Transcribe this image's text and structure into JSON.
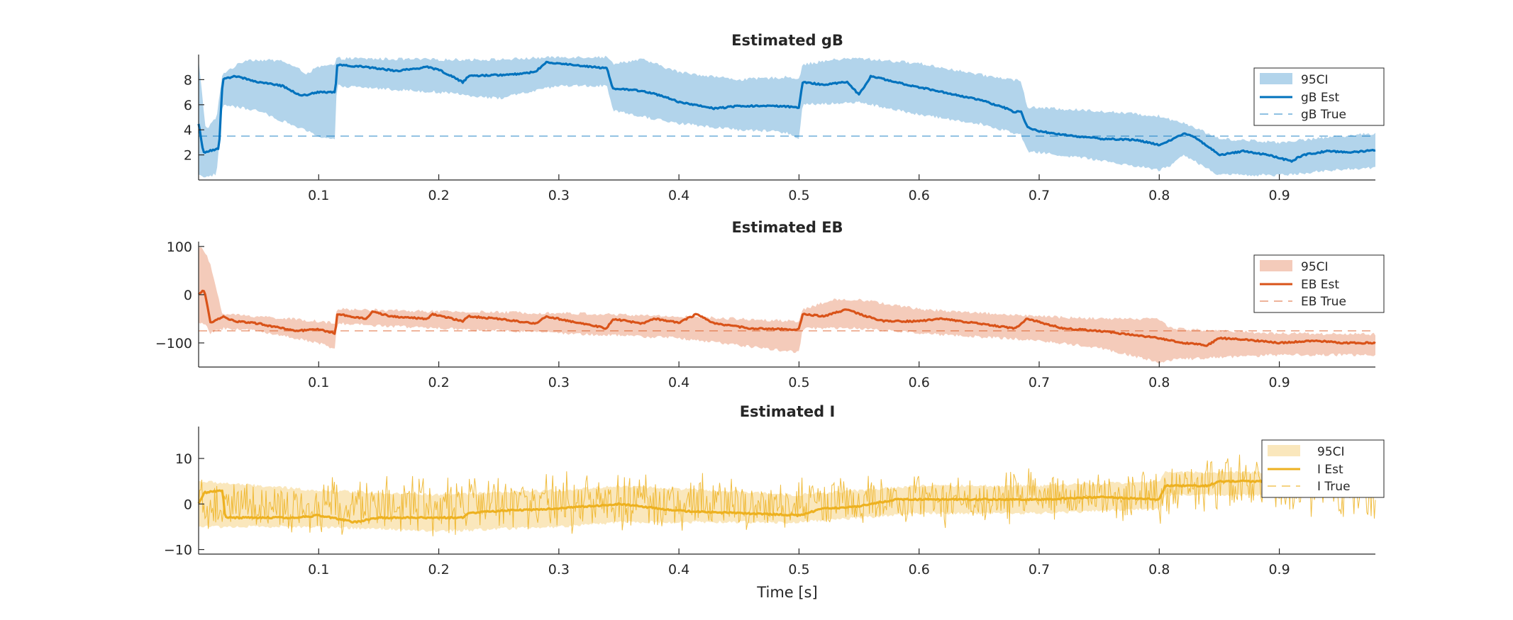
{
  "chart_data": [
    {
      "type": "line",
      "title": "Estimated gB",
      "xlabel": "",
      "ylabel": "",
      "xlim": [
        0,
        0.98
      ],
      "ylim": [
        0,
        10
      ],
      "x_ticks": [
        0.1,
        0.2,
        0.3,
        0.4,
        0.5,
        0.6,
        0.7,
        0.8,
        0.9
      ],
      "x_tick_labels": [
        "0.1",
        "0.2",
        "0.3",
        "0.4",
        "0.5",
        "0.6",
        "0.7",
        "0.8",
        "0.9"
      ],
      "y_ticks": [
        2,
        4,
        6,
        8
      ],
      "y_tick_labels": [
        "2",
        "4",
        "6",
        "8"
      ],
      "legend": {
        "position": "top-right",
        "entries": [
          "95CI",
          "gB Est",
          "gB True"
        ]
      },
      "color": "#0072BD",
      "true_value": 3.5,
      "noise_true": false,
      "true_amp": 0,
      "est": [
        [
          0,
          4.5
        ],
        [
          0.004,
          2.2
        ],
        [
          0.017,
          2.5
        ],
        [
          0.02,
          8.0
        ],
        [
          0.03,
          8.3
        ],
        [
          0.05,
          7.8
        ],
        [
          0.07,
          7.5
        ],
        [
          0.085,
          6.7
        ],
        [
          0.1,
          7.0
        ],
        [
          0.114,
          7.0
        ],
        [
          0.115,
          9.2
        ],
        [
          0.14,
          9.0
        ],
        [
          0.165,
          8.7
        ],
        [
          0.19,
          9.0
        ],
        [
          0.2,
          8.8
        ],
        [
          0.22,
          7.8
        ],
        [
          0.225,
          8.3
        ],
        [
          0.26,
          8.4
        ],
        [
          0.28,
          8.6
        ],
        [
          0.29,
          9.4
        ],
        [
          0.31,
          9.2
        ],
        [
          0.34,
          8.9
        ],
        [
          0.345,
          7.3
        ],
        [
          0.37,
          7.1
        ],
        [
          0.39,
          6.6
        ],
        [
          0.4,
          6.2
        ],
        [
          0.43,
          5.7
        ],
        [
          0.45,
          5.9
        ],
        [
          0.48,
          5.9
        ],
        [
          0.5,
          5.8
        ],
        [
          0.503,
          7.8
        ],
        [
          0.52,
          7.6
        ],
        [
          0.54,
          7.8
        ],
        [
          0.55,
          6.8
        ],
        [
          0.56,
          8.3
        ],
        [
          0.58,
          7.8
        ],
        [
          0.6,
          7.4
        ],
        [
          0.62,
          7.0
        ],
        [
          0.65,
          6.4
        ],
        [
          0.67,
          5.8
        ],
        [
          0.68,
          5.4
        ],
        [
          0.685,
          5.5
        ],
        [
          0.69,
          4.2
        ],
        [
          0.7,
          3.9
        ],
        [
          0.72,
          3.6
        ],
        [
          0.75,
          3.3
        ],
        [
          0.78,
          3.2
        ],
        [
          0.8,
          2.8
        ],
        [
          0.81,
          3.2
        ],
        [
          0.82,
          3.7
        ],
        [
          0.83,
          3.4
        ],
        [
          0.85,
          2.0
        ],
        [
          0.87,
          2.3
        ],
        [
          0.89,
          2.0
        ],
        [
          0.91,
          1.5
        ],
        [
          0.92,
          2.0
        ],
        [
          0.94,
          2.3
        ],
        [
          0.96,
          2.2
        ],
        [
          0.98,
          2.4
        ]
      ],
      "ci_upper": [
        [
          0,
          9.5
        ],
        [
          0.006,
          4.0
        ],
        [
          0.015,
          5.0
        ],
        [
          0.02,
          8.5
        ],
        [
          0.04,
          9.6
        ],
        [
          0.07,
          9.5
        ],
        [
          0.09,
          8.5
        ],
        [
          0.1,
          9.0
        ],
        [
          0.114,
          9.2
        ],
        [
          0.115,
          9.7
        ],
        [
          0.2,
          9.6
        ],
        [
          0.25,
          9.6
        ],
        [
          0.3,
          9.8
        ],
        [
          0.34,
          9.8
        ],
        [
          0.345,
          9.3
        ],
        [
          0.37,
          9.6
        ],
        [
          0.4,
          8.6
        ],
        [
          0.45,
          8.0
        ],
        [
          0.49,
          8.2
        ],
        [
          0.5,
          8.1
        ],
        [
          0.503,
          9.2
        ],
        [
          0.53,
          9.6
        ],
        [
          0.55,
          9.7
        ],
        [
          0.6,
          9.3
        ],
        [
          0.65,
          8.4
        ],
        [
          0.685,
          7.9
        ],
        [
          0.69,
          5.8
        ],
        [
          0.75,
          5.5
        ],
        [
          0.8,
          5.1
        ],
        [
          0.81,
          4.8
        ],
        [
          0.82,
          4.6
        ],
        [
          0.85,
          3.3
        ],
        [
          0.9,
          3.0
        ],
        [
          0.95,
          3.5
        ],
        [
          0.98,
          3.7
        ]
      ],
      "ci_lower": [
        [
          0,
          0.5
        ],
        [
          0.006,
          0.2
        ],
        [
          0.015,
          0.5
        ],
        [
          0.02,
          6.0
        ],
        [
          0.05,
          5.5
        ],
        [
          0.1,
          3.5
        ],
        [
          0.114,
          3.2
        ],
        [
          0.115,
          7.5
        ],
        [
          0.2,
          7.0
        ],
        [
          0.25,
          6.5
        ],
        [
          0.3,
          7.5
        ],
        [
          0.34,
          7.5
        ],
        [
          0.345,
          5.5
        ],
        [
          0.4,
          4.5
        ],
        [
          0.45,
          4.0
        ],
        [
          0.49,
          3.8
        ],
        [
          0.5,
          3.2
        ],
        [
          0.503,
          6.0
        ],
        [
          0.55,
          6.2
        ],
        [
          0.6,
          5.2
        ],
        [
          0.65,
          4.5
        ],
        [
          0.685,
          3.6
        ],
        [
          0.69,
          2.3
        ],
        [
          0.75,
          1.6
        ],
        [
          0.8,
          0.8
        ],
        [
          0.81,
          1.2
        ],
        [
          0.82,
          2.0
        ],
        [
          0.85,
          0.4
        ],
        [
          0.9,
          0.4
        ],
        [
          0.95,
          0.8
        ],
        [
          0.98,
          1.0
        ]
      ]
    },
    {
      "type": "line",
      "title": "Estimated EB",
      "xlabel": "",
      "ylabel": "",
      "xlim": [
        0,
        0.98
      ],
      "ylim": [
        -150,
        110
      ],
      "x_ticks": [
        0.1,
        0.2,
        0.3,
        0.4,
        0.5,
        0.6,
        0.7,
        0.8,
        0.9
      ],
      "x_tick_labels": [
        "0.1",
        "0.2",
        "0.3",
        "0.4",
        "0.5",
        "0.6",
        "0.7",
        "0.8",
        "0.9"
      ],
      "y_ticks": [
        -100,
        0,
        100
      ],
      "y_tick_labels": [
        "−100",
        "0",
        "100"
      ],
      "legend": {
        "position": "top-right",
        "entries": [
          "95CI",
          "EB Est",
          "EB True"
        ]
      },
      "color": "#D95319",
      "true_value": -75,
      "noise_true": false,
      "true_amp": 0,
      "est": [
        [
          0,
          0
        ],
        [
          0.004,
          10
        ],
        [
          0.006,
          -5
        ],
        [
          0.01,
          -60
        ],
        [
          0.02,
          -45
        ],
        [
          0.03,
          -55
        ],
        [
          0.05,
          -60
        ],
        [
          0.08,
          -75
        ],
        [
          0.1,
          -72
        ],
        [
          0.114,
          -80
        ],
        [
          0.115,
          -40
        ],
        [
          0.14,
          -50
        ],
        [
          0.145,
          -35
        ],
        [
          0.16,
          -45
        ],
        [
          0.19,
          -50
        ],
        [
          0.195,
          -40
        ],
        [
          0.22,
          -55
        ],
        [
          0.225,
          -45
        ],
        [
          0.25,
          -50
        ],
        [
          0.28,
          -60
        ],
        [
          0.29,
          -45
        ],
        [
          0.31,
          -55
        ],
        [
          0.34,
          -70
        ],
        [
          0.345,
          -50
        ],
        [
          0.37,
          -60
        ],
        [
          0.38,
          -50
        ],
        [
          0.4,
          -58
        ],
        [
          0.415,
          -40
        ],
        [
          0.43,
          -60
        ],
        [
          0.46,
          -70
        ],
        [
          0.5,
          -72
        ],
        [
          0.503,
          -40
        ],
        [
          0.52,
          -45
        ],
        [
          0.54,
          -30
        ],
        [
          0.55,
          -40
        ],
        [
          0.57,
          -55
        ],
        [
          0.6,
          -55
        ],
        [
          0.62,
          -50
        ],
        [
          0.65,
          -60
        ],
        [
          0.68,
          -70
        ],
        [
          0.69,
          -50
        ],
        [
          0.72,
          -70
        ],
        [
          0.75,
          -75
        ],
        [
          0.8,
          -90
        ],
        [
          0.82,
          -100
        ],
        [
          0.84,
          -105
        ],
        [
          0.85,
          -90
        ],
        [
          0.88,
          -95
        ],
        [
          0.9,
          -100
        ],
        [
          0.93,
          -95
        ],
        [
          0.95,
          -100
        ],
        [
          0.98,
          -100
        ]
      ],
      "ci_upper": [
        [
          0,
          100
        ],
        [
          0.005,
          90
        ],
        [
          0.01,
          60
        ],
        [
          0.02,
          -40
        ],
        [
          0.05,
          -45
        ],
        [
          0.1,
          -55
        ],
        [
          0.114,
          -60
        ],
        [
          0.115,
          -30
        ],
        [
          0.2,
          -35
        ],
        [
          0.3,
          -38
        ],
        [
          0.4,
          -45
        ],
        [
          0.5,
          -55
        ],
        [
          0.503,
          -30
        ],
        [
          0.53,
          -10
        ],
        [
          0.55,
          -10
        ],
        [
          0.6,
          -30
        ],
        [
          0.7,
          -45
        ],
        [
          0.75,
          -50
        ],
        [
          0.8,
          -50
        ],
        [
          0.81,
          -70
        ],
        [
          0.85,
          -75
        ],
        [
          0.9,
          -80
        ],
        [
          0.98,
          -82
        ]
      ],
      "ci_lower": [
        [
          0,
          -60
        ],
        [
          0.005,
          -60
        ],
        [
          0.01,
          -80
        ],
        [
          0.02,
          -70
        ],
        [
          0.05,
          -75
        ],
        [
          0.1,
          -100
        ],
        [
          0.114,
          -115
        ],
        [
          0.115,
          -60
        ],
        [
          0.2,
          -70
        ],
        [
          0.3,
          -80
        ],
        [
          0.4,
          -90
        ],
        [
          0.5,
          -120
        ],
        [
          0.503,
          -70
        ],
        [
          0.55,
          -70
        ],
        [
          0.6,
          -80
        ],
        [
          0.7,
          -95
        ],
        [
          0.75,
          -110
        ],
        [
          0.8,
          -140
        ],
        [
          0.81,
          -135
        ],
        [
          0.85,
          -130
        ],
        [
          0.9,
          -125
        ],
        [
          0.98,
          -125
        ]
      ]
    },
    {
      "type": "line",
      "title": "Estimated I",
      "xlabel": "Time [s]",
      "ylabel": "",
      "xlim": [
        0,
        0.98
      ],
      "ylim": [
        -11,
        17
      ],
      "x_ticks": [
        0.1,
        0.2,
        0.3,
        0.4,
        0.5,
        0.6,
        0.7,
        0.8,
        0.9
      ],
      "x_tick_labels": [
        "0.1",
        "0.2",
        "0.3",
        "0.4",
        "0.5",
        "0.6",
        "0.7",
        "0.8",
        "0.9"
      ],
      "y_ticks": [
        -10,
        0,
        10
      ],
      "y_tick_labels": [
        "−10",
        "0",
        "10"
      ],
      "legend": {
        "position": "top-right",
        "entries": [
          "95CI",
          "I Est",
          "I True"
        ]
      },
      "color": "#EDB120",
      "true_value": 0,
      "noise_true": true,
      "true_amp": 4,
      "true_trend": [
        [
          0,
          0
        ],
        [
          0.2,
          0
        ],
        [
          0.5,
          0.5
        ],
        [
          0.8,
          2
        ],
        [
          0.85,
          5
        ],
        [
          0.98,
          2
        ]
      ],
      "est": [
        [
          0,
          0
        ],
        [
          0.005,
          2.5
        ],
        [
          0.02,
          3
        ],
        [
          0.022,
          -3
        ],
        [
          0.05,
          -3
        ],
        [
          0.08,
          -3
        ],
        [
          0.1,
          -2.5
        ],
        [
          0.13,
          -4
        ],
        [
          0.15,
          -3
        ],
        [
          0.2,
          -3
        ],
        [
          0.22,
          -3
        ],
        [
          0.225,
          -2
        ],
        [
          0.25,
          -1.5
        ],
        [
          0.3,
          -1
        ],
        [
          0.35,
          0
        ],
        [
          0.4,
          -1.5
        ],
        [
          0.45,
          -2
        ],
        [
          0.5,
          -2.5
        ],
        [
          0.52,
          -1
        ],
        [
          0.55,
          -0.5
        ],
        [
          0.58,
          1
        ],
        [
          0.6,
          1
        ],
        [
          0.65,
          1
        ],
        [
          0.7,
          1
        ],
        [
          0.75,
          1.5
        ],
        [
          0.8,
          1
        ],
        [
          0.805,
          4
        ],
        [
          0.82,
          4
        ],
        [
          0.84,
          4
        ],
        [
          0.85,
          5
        ],
        [
          0.9,
          5
        ],
        [
          0.95,
          4
        ],
        [
          0.98,
          4
        ]
      ],
      "ci_upper": [
        [
          0,
          5
        ],
        [
          0.1,
          3
        ],
        [
          0.2,
          2
        ],
        [
          0.3,
          3
        ],
        [
          0.35,
          4
        ],
        [
          0.5,
          2
        ],
        [
          0.6,
          4
        ],
        [
          0.7,
          4
        ],
        [
          0.8,
          5
        ],
        [
          0.805,
          7
        ],
        [
          0.9,
          7
        ],
        [
          0.98,
          6
        ]
      ],
      "ci_lower": [
        [
          0,
          -5
        ],
        [
          0.1,
          -5
        ],
        [
          0.2,
          -6
        ],
        [
          0.3,
          -5
        ],
        [
          0.35,
          -4
        ],
        [
          0.5,
          -4
        ],
        [
          0.6,
          -2
        ],
        [
          0.7,
          -2
        ],
        [
          0.8,
          -1
        ],
        [
          0.805,
          2
        ],
        [
          0.9,
          2
        ],
        [
          0.98,
          2
        ]
      ]
    }
  ]
}
